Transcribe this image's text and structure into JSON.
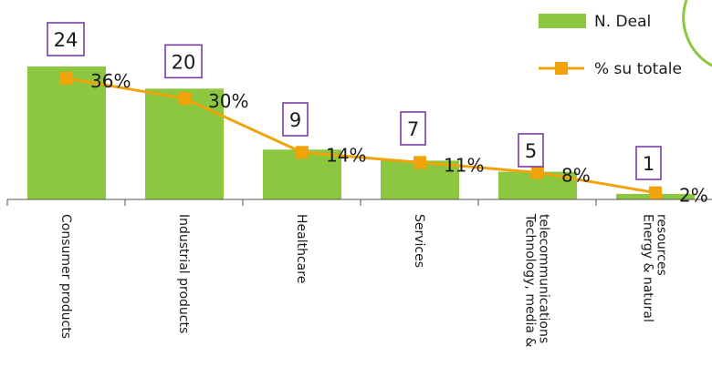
{
  "chart_data": {
    "type": "bar",
    "categories": [
      "Consumer products",
      "Industrial products",
      "Healthcare",
      "Services",
      [
        "Technology, media &",
        "telecommunications"
      ],
      [
        "Energy & natural",
        "resources"
      ]
    ],
    "series": [
      {
        "name": "N. Deal",
        "type": "bar",
        "values": [
          24,
          20,
          9,
          7,
          5,
          1
        ],
        "color": "#8dc63f"
      },
      {
        "name": "% su totale",
        "type": "line",
        "values": [
          36,
          30,
          14,
          11,
          8,
          2
        ],
        "color": "#f0a30a"
      }
    ],
    "bar_labels": [
      "24",
      "20",
      "9",
      "7",
      "5",
      "1"
    ],
    "line_labels": [
      "36%",
      "30%",
      "14%",
      "11%",
      "8%",
      "2%"
    ],
    "label_box_color": "#7030a0",
    "legend_position": "top-right",
    "grid": false
  }
}
